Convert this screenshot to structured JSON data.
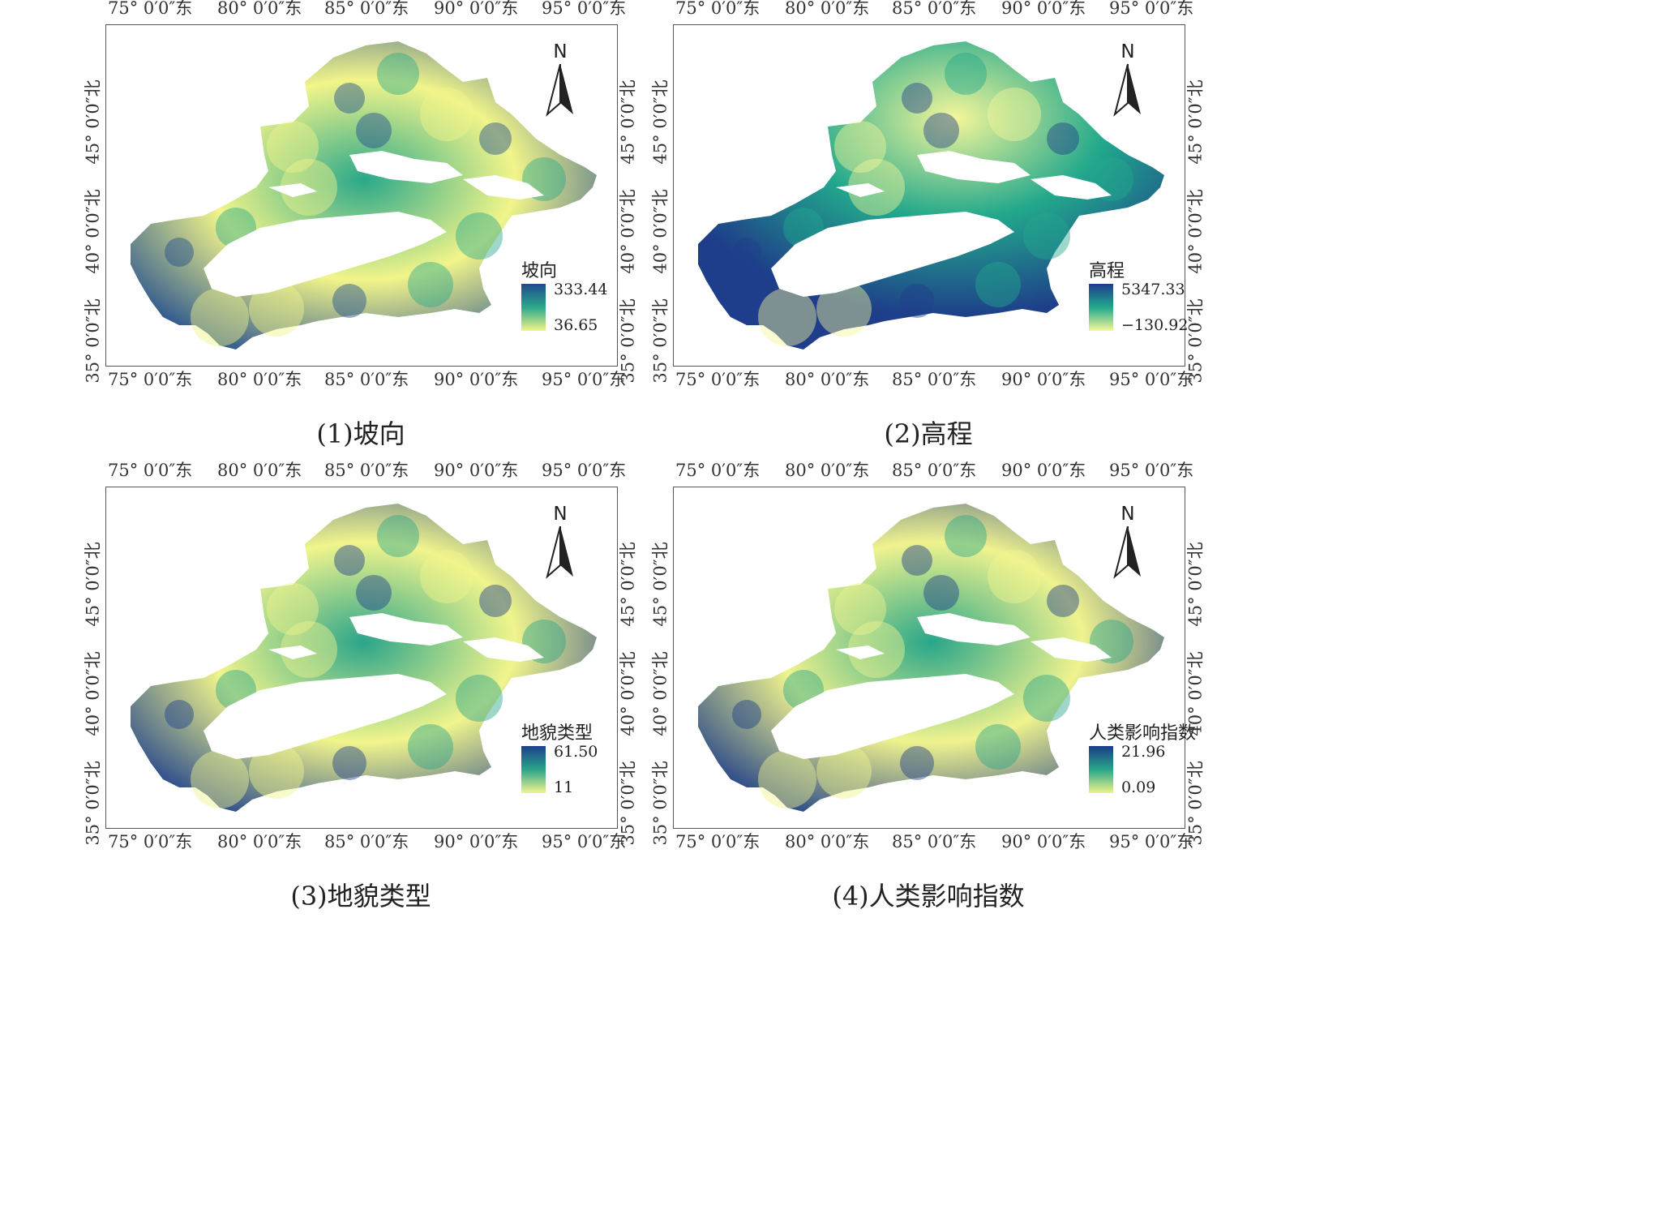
{
  "lon_ticks": [
    "75° 0′0″东",
    "80° 0′0″东",
    "85° 0′0″东",
    "90° 0′0″东",
    "95° 0′0″东"
  ],
  "lat_ticks": [
    "45° 0′0″北",
    "40° 0′0″北",
    "35° 0′0″北"
  ],
  "north_label": "N",
  "colors": {
    "high": "#1e4b8f",
    "mid": "#2aa88a",
    "low": "#f2f58a",
    "frame": "#555555"
  },
  "panels": [
    {
      "caption": "(1)坡向",
      "legend": {
        "title": "坡向",
        "max": "333.44",
        "min": "36.65"
      }
    },
    {
      "caption": "(2)高程",
      "legend": {
        "title": "高程",
        "max": "5347.33",
        "min": "−130.92"
      }
    },
    {
      "caption": "(3)地貌类型",
      "legend": {
        "title": "地貌类型",
        "max": "61.50",
        "min": "11"
      }
    },
    {
      "caption": "(4)人类影响指数",
      "legend": {
        "title": "人类影响指数",
        "max": "21.96",
        "min": "0.09"
      }
    }
  ]
}
